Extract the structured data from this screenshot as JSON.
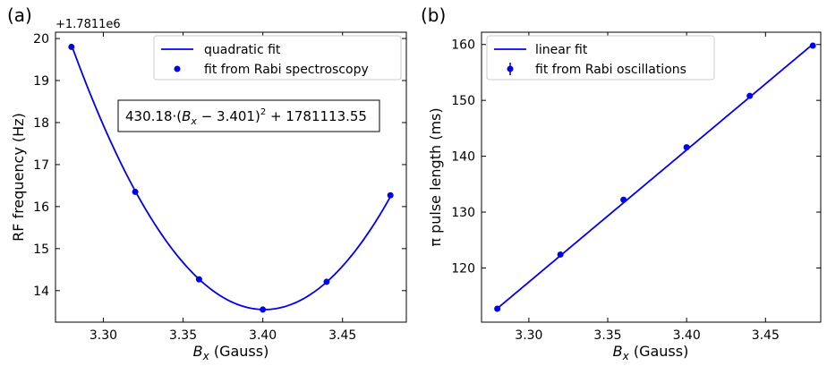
{
  "chart_data": [
    {
      "panel_label": "(a)",
      "type": "line",
      "xlabel_sym": "B",
      "xlabel_sub": "x",
      "xlabel_unit": "(Gauss)",
      "ylabel": "RF frequency (Hz)",
      "offset_text": "+1.7811e6",
      "xlim": [
        3.27,
        3.49
      ],
      "ylim": [
        13.25,
        20.15
      ],
      "xticks": [
        "3.30",
        "3.35",
        "3.40",
        "3.45"
      ],
      "yticks": [
        "14",
        "15",
        "16",
        "17",
        "18",
        "19",
        "20"
      ],
      "fit": {
        "a": 430.18,
        "x0": 3.401,
        "c": 13.55
      },
      "equation": "430.18·(Bₓ − 3.401)² + 1781113.55",
      "series": [
        {
          "name": "quadratic fit",
          "style": "line"
        },
        {
          "name": "fit from Rabi spectroscopy",
          "style": "markers",
          "x": [
            3.28,
            3.32,
            3.36,
            3.4,
            3.44,
            3.48
          ],
          "y": [
            19.8,
            16.35,
            14.27,
            13.55,
            14.21,
            16.27
          ]
        }
      ],
      "legend_position": "top-right",
      "grid": false,
      "color": "#0000ee"
    },
    {
      "panel_label": "(b)",
      "type": "line",
      "xlabel_sym": "B",
      "xlabel_sub": "x",
      "xlabel_unit": "(Gauss)",
      "ylabel": "π pulse length (ms)",
      "xlim": [
        3.27,
        3.485
      ],
      "ylim": [
        110.3,
        162.2
      ],
      "xticks": [
        "3.30",
        "3.35",
        "3.40",
        "3.45"
      ],
      "yticks": [
        "120",
        "130",
        "140",
        "150",
        "160"
      ],
      "fit": {
        "slope": 236.5,
        "intercept": -662.97
      },
      "series": [
        {
          "name": "linear fit",
          "style": "line"
        },
        {
          "name": "fit from Rabi oscillations",
          "style": "errorbar",
          "x": [
            3.28,
            3.32,
            3.36,
            3.4,
            3.44,
            3.48
          ],
          "y": [
            112.7,
            122.4,
            132.2,
            141.6,
            150.8,
            159.8
          ]
        }
      ],
      "legend_position": "top-left",
      "grid": false,
      "color": "#0000ee"
    }
  ]
}
